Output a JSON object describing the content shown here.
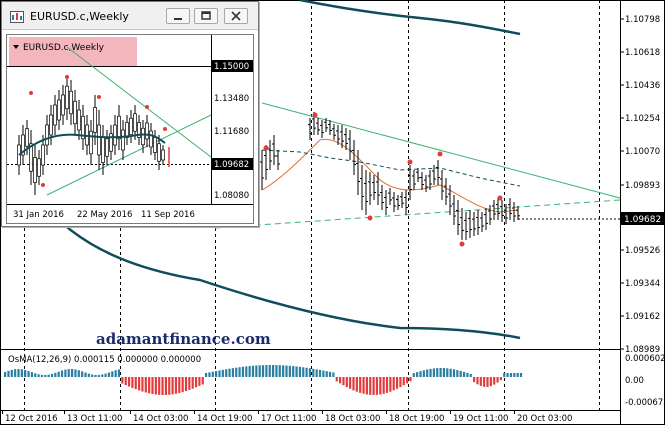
{
  "watermark": "adamantfinance.com",
  "main_chart": {
    "price_levels": [
      "1.10798",
      "1.10618",
      "1.10436",
      "1.10254",
      "1.10070",
      "1.09893",
      "1.09682",
      "1.09526",
      "1.09344",
      "1.09162",
      "1.08989"
    ],
    "current_price": "1.09682",
    "time_labels": [
      "12 Oct 2016",
      "13 Oct 11:00",
      "14 Oct 03:00",
      "14 Oct 19:00",
      "17 Oct 11:00",
      "18 Oct 03:00",
      "18 Oct 19:00",
      "19 Oct 11:00",
      "20 Oct 03:00"
    ]
  },
  "osma": {
    "label": "OsMA(12,26,9) 0.000115 0.000000 0.000000",
    "levels": [
      "0.000602",
      "0.00",
      "-0.000672"
    ]
  },
  "sub_window": {
    "title": "EURUSD.c,Weekly",
    "chart_label": "EURUSD.c,Weekly",
    "price_levels": [
      "1.15000",
      "1.13480",
      "1.11680",
      "1.09682",
      "1.08080"
    ],
    "current_price": "1.09682",
    "time_labels": [
      "31 Jan 2016",
      "22 May 2016",
      "11 Sep 2016"
    ]
  },
  "colors": {
    "bull_bar": "#2a7fa0",
    "bear_bar": "#e23b3b",
    "envelope": "#0f4c5c",
    "ma_orange": "#e07030",
    "trendline": "#3cb371",
    "current_price_box": "#000000"
  }
}
